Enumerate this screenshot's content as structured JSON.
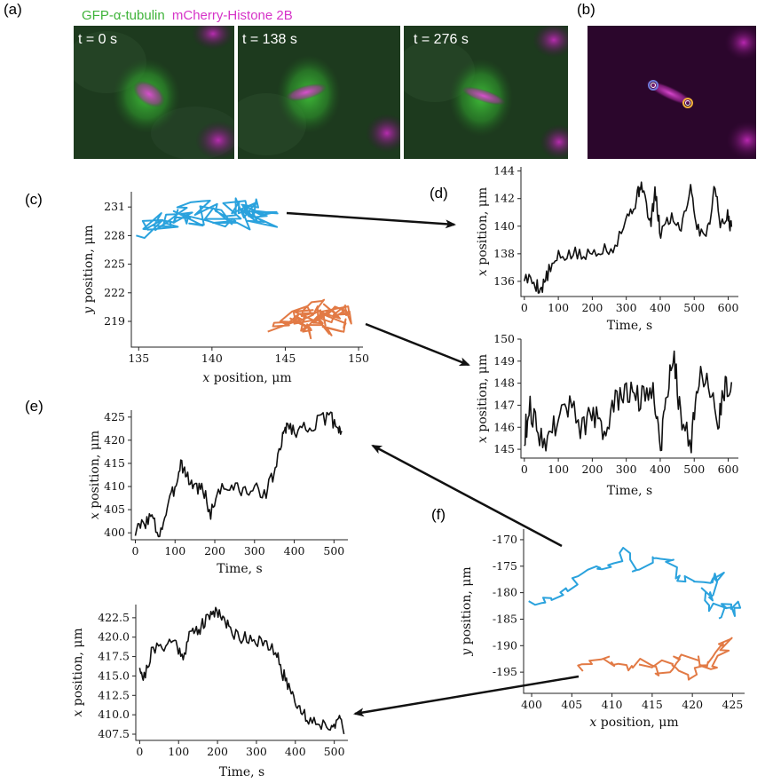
{
  "panel_labels": {
    "a": "(a)",
    "b": "(b)",
    "c": "(c)",
    "d": "(d)",
    "e": "(e)",
    "f": "(f)"
  },
  "microscopy": {
    "title_green": "GFP-α-tubulin",
    "title_magenta": "mCherry-Histone 2B",
    "frames": [
      "t = 0 s",
      "t = 138 s",
      "t = 276 s"
    ],
    "colors": {
      "tubulin": "#3fb33a",
      "histone": "#d634c8",
      "spot1": "#6f7bd9",
      "spot2": "#f0b13a"
    }
  },
  "colors": {
    "blue": "#2aa2dd",
    "orange": "#e27a45",
    "black": "#111111"
  },
  "chart_data": [
    {
      "id": "c",
      "type": "scatter",
      "mode": "trajectory",
      "xlabel_var": "x",
      "xlabel_rest": " position, μm",
      "ylabel_var": "y",
      "ylabel_rest": " position, μm",
      "xlim": [
        134.5,
        150.3
      ],
      "ylim": [
        216.3,
        232.6
      ],
      "xticks": [
        135,
        140,
        145,
        150
      ],
      "yticks": [
        219,
        222,
        225,
        228,
        231
      ],
      "seed": 11,
      "series": [
        {
          "color": "blue",
          "x": [
            135.5,
            137.8,
            140.2,
            142.6,
            144.0,
            143.0,
            140.0,
            137.0,
            136.0,
            138.5,
            141.0,
            143.8
          ],
          "y": [
            228.5,
            230.0,
            230.2,
            231.0,
            230.6,
            229.8,
            229.5,
            230.3,
            229.0,
            231.2,
            230.9,
            230.0
          ],
          "jitter": [
            1.3,
            1.1
          ],
          "points": 90
        },
        {
          "color": "orange",
          "x": [
            144.6,
            146.0,
            147.5,
            149.2,
            148.0,
            146.5,
            145.2,
            147.0,
            149.0,
            146.3
          ],
          "y": [
            218.8,
            219.8,
            219.2,
            220.3,
            218.4,
            218.0,
            219.5,
            220.6,
            219.6,
            218.6
          ],
          "jitter": [
            0.9,
            0.9
          ],
          "points": 90
        }
      ]
    },
    {
      "id": "d1",
      "type": "line",
      "xlabel": "Time, s",
      "ylabel_var": "x",
      "ylabel_rest": " position, μm",
      "xlim": [
        -10,
        630
      ],
      "ylim": [
        134.9,
        144.3
      ],
      "xticks": [
        0,
        100,
        200,
        300,
        400,
        500,
        600
      ],
      "yticks": [
        136,
        138,
        140,
        142,
        144
      ],
      "seed": 5,
      "series": [
        {
          "color": "black",
          "noise": 0.55,
          "x": [
            0,
            30,
            50,
            70,
            100,
            140,
            180,
            220,
            260,
            300,
            330,
            345,
            370,
            385,
            400,
            430,
            460,
            490,
            510,
            540,
            560,
            580,
            600,
            610
          ],
          "y": [
            136.3,
            135.9,
            135.4,
            136.6,
            137.7,
            138.0,
            137.8,
            138.4,
            138.4,
            140.5,
            141.9,
            143.3,
            140.0,
            142.4,
            139.5,
            140.7,
            139.9,
            142.9,
            139.7,
            139.6,
            143.0,
            139.9,
            140.8,
            139.7
          ]
        }
      ]
    },
    {
      "id": "d2",
      "type": "line",
      "xlabel": "Time, s",
      "ylabel_var": "x",
      "ylabel_rest": " position, μm",
      "xlim": [
        -10,
        630
      ],
      "ylim": [
        144.6,
        150.0
      ],
      "xticks": [
        0,
        100,
        200,
        300,
        400,
        500,
        600
      ],
      "yticks": [
        145,
        146,
        147,
        148,
        149,
        150
      ],
      "seed": 9,
      "series": [
        {
          "color": "black",
          "noise": 0.65,
          "x": [
            0,
            15,
            40,
            70,
            100,
            130,
            170,
            200,
            230,
            260,
            290,
            320,
            350,
            380,
            400,
            420,
            440,
            460,
            490,
            510,
            540,
            570,
            590,
            610
          ],
          "y": [
            145.5,
            147.0,
            145.8,
            145.4,
            146.5,
            147.1,
            145.9,
            146.8,
            145.6,
            146.9,
            147.5,
            147.6,
            147.2,
            148.0,
            145.1,
            147.5,
            149.5,
            146.4,
            145.2,
            148.2,
            148.0,
            146.3,
            147.9,
            148.2
          ]
        }
      ]
    },
    {
      "id": "e1",
      "type": "line",
      "xlabel": "Time, s",
      "ylabel_var": "x",
      "ylabel_rest": " position, μm",
      "xlim": [
        -10,
        535
      ],
      "ylim": [
        398.5,
        426.5
      ],
      "xticks": [
        0,
        100,
        200,
        300,
        400,
        500
      ],
      "yticks": [
        400,
        405,
        410,
        415,
        420,
        425
      ],
      "seed": 3,
      "series": [
        {
          "color": "black",
          "noise": 1.6,
          "x": [
            0,
            20,
            40,
            60,
            80,
            100,
            115,
            130,
            150,
            170,
            190,
            210,
            240,
            270,
            300,
            330,
            350,
            370,
            380,
            400,
            430,
            460,
            490,
            510,
            520
          ],
          "y": [
            400.2,
            402.0,
            403.5,
            399.5,
            405.0,
            410.0,
            415.5,
            412.0,
            410.0,
            409.5,
            404.0,
            409.5,
            410.0,
            409.0,
            409.2,
            409.0,
            413.0,
            420.0,
            423.5,
            422.0,
            422.8,
            424.0,
            425.0,
            423.0,
            422.0
          ]
        }
      ]
    },
    {
      "id": "e2",
      "type": "line",
      "xlabel": "Time, s",
      "ylabel_var": "x",
      "ylabel_rest": " position, μm",
      "xlim": [
        -10,
        535
      ],
      "ylim": [
        406.7,
        424.2
      ],
      "xticks": [
        0,
        100,
        200,
        300,
        400,
        500
      ],
      "yticks": [
        407.5,
        410.0,
        412.5,
        415.0,
        417.5,
        420.0,
        422.5
      ],
      "seed": 21,
      "series": [
        {
          "color": "black",
          "noise": 0.9,
          "x": [
            0,
            10,
            30,
            60,
            90,
            110,
            130,
            150,
            170,
            190,
            210,
            230,
            260,
            290,
            320,
            350,
            370,
            390,
            410,
            430,
            460,
            490,
            510,
            525
          ],
          "y": [
            416.5,
            414.5,
            418.0,
            419.0,
            419.5,
            417.5,
            420.5,
            421.0,
            422.0,
            423.5,
            423.0,
            421.0,
            420.0,
            420.0,
            419.0,
            418.0,
            415.0,
            413.0,
            411.0,
            409.5,
            409.0,
            408.5,
            409.5,
            407.8
          ]
        }
      ]
    },
    {
      "id": "f",
      "type": "scatter",
      "mode": "trajectory",
      "xlabel_var": "x",
      "xlabel_rest": " position, μm",
      "ylabel_var": "y",
      "ylabel_rest": " position, μm",
      "xlim": [
        399,
        426.5
      ],
      "ylim": [
        -199,
        -168
      ],
      "xticks": [
        400,
        405,
        410,
        415,
        420,
        425
      ],
      "yticks": [
        -170,
        -175,
        -180,
        -185,
        -190,
        -195
      ],
      "seed": 17,
      "series": [
        {
          "color": "blue",
          "x": [
            400,
            402,
            404,
            406,
            408,
            410,
            411.5,
            413,
            415,
            417,
            418,
            420,
            422,
            423.5,
            422.5,
            421,
            423,
            425,
            425.5,
            423.5
          ],
          "y": [
            -182.2,
            -181.0,
            -180.0,
            -177.5,
            -175.0,
            -174.5,
            -172.0,
            -176.0,
            -173.5,
            -174.0,
            -177.0,
            -177.2,
            -177.4,
            -177.0,
            -181.0,
            -179.5,
            -183.0,
            -182.0,
            -183.5,
            -184.0
          ],
          "jitter": [
            1.2,
            1.6
          ],
          "points": 0
        },
        {
          "color": "orange",
          "x": [
            406.0,
            408.0,
            410.0,
            412.0,
            414.0,
            416.0,
            418.0,
            420.0,
            421.5,
            423.0,
            424.5,
            423.0,
            421.0,
            419.0,
            417.0,
            414.0
          ],
          "y": [
            -195.0,
            -192.0,
            -193.5,
            -194.0,
            -193.0,
            -196.0,
            -193.0,
            -192.0,
            -194.0,
            -190.0,
            -189.0,
            -193.5,
            -194.0,
            -196.5,
            -193.0,
            -194.0
          ],
          "jitter": [
            1.3,
            1.3
          ],
          "points": 0
        }
      ]
    }
  ]
}
